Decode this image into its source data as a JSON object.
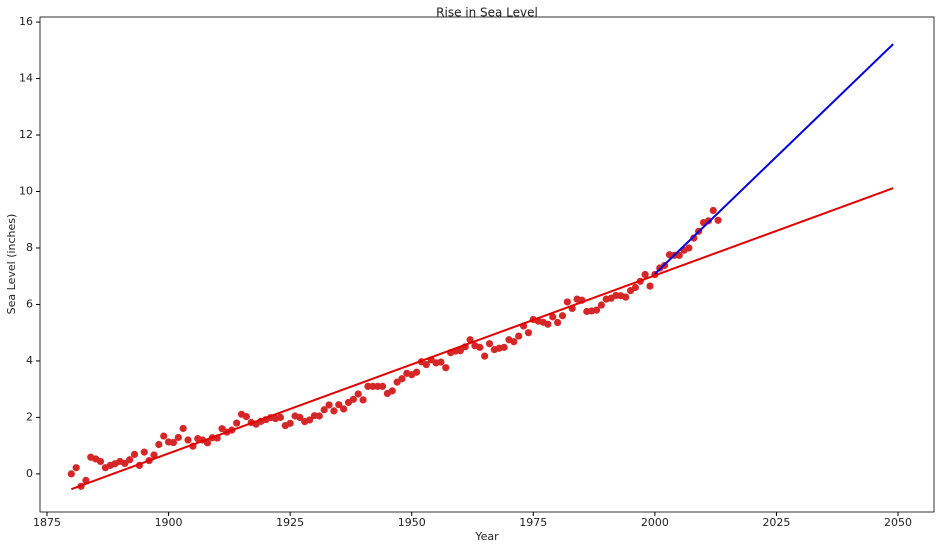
{
  "chart_data": {
    "type": "scatter",
    "title": "Rise in Sea Level",
    "x_label": "Year",
    "y_label": "Sea Level (inches)",
    "xlim": [
      1873.56,
      2057.4
    ],
    "ylim": [
      -1.35,
      16.18
    ],
    "xticks": [
      1875,
      1900,
      1925,
      1950,
      1975,
      2000,
      2025,
      2050
    ],
    "yticks": [
      0,
      2,
      4,
      6,
      8,
      10,
      12,
      14,
      16
    ],
    "series": [
      {
        "type": "scatter",
        "color": "#d62728",
        "x": [
          1880,
          1881,
          1882,
          1883,
          1884,
          1885,
          1886,
          1887,
          1888,
          1889,
          1890,
          1891,
          1892,
          1893,
          1894,
          1895,
          1896,
          1897,
          1898,
          1899,
          1900,
          1901,
          1902,
          1903,
          1904,
          1905,
          1906,
          1907,
          1908,
          1909,
          1910,
          1911,
          1912,
          1913,
          1914,
          1915,
          1916,
          1917,
          1918,
          1919,
          1920,
          1921,
          1922,
          1923,
          1924,
          1925,
          1926,
          1927,
          1928,
          1929,
          1930,
          1931,
          1932,
          1933,
          1934,
          1935,
          1936,
          1937,
          1938,
          1939,
          1940,
          1941,
          1942,
          1943,
          1944,
          1945,
          1946,
          1947,
          1948,
          1949,
          1950,
          1951,
          1952,
          1953,
          1954,
          1955,
          1956,
          1957,
          1958,
          1959,
          1960,
          1961,
          1962,
          1963,
          1964,
          1965,
          1966,
          1967,
          1968,
          1969,
          1970,
          1971,
          1972,
          1973,
          1974,
          1975,
          1976,
          1977,
          1978,
          1979,
          1980,
          1981,
          1982,
          1983,
          1984,
          1985,
          1986,
          1987,
          1988,
          1989,
          1990,
          1991,
          1992,
          1993,
          1994,
          1995,
          1996,
          1997,
          1998,
          1999,
          2000,
          2001,
          2002,
          2003,
          2004,
          2005,
          2006,
          2007,
          2008,
          2009,
          2010,
          2011,
          2012,
          2013
        ],
        "values": [
          0.0,
          0.22,
          -0.44,
          -0.23,
          0.59,
          0.53,
          0.44,
          0.22,
          0.3,
          0.36,
          0.44,
          0.37,
          0.5,
          0.69,
          0.3,
          0.77,
          0.47,
          0.67,
          1.04,
          1.34,
          1.13,
          1.11,
          1.29,
          1.61,
          1.2,
          0.98,
          1.25,
          1.2,
          1.1,
          1.28,
          1.27,
          1.6,
          1.48,
          1.55,
          1.8,
          2.11,
          2.03,
          1.82,
          1.76,
          1.86,
          1.92,
          1.99,
          1.96,
          2.0,
          1.71,
          1.79,
          2.05,
          2.0,
          1.85,
          1.91,
          2.06,
          2.05,
          2.27,
          2.44,
          2.23,
          2.45,
          2.3,
          2.53,
          2.64,
          2.83,
          2.62,
          3.1,
          3.1,
          3.1,
          3.1,
          2.85,
          2.94,
          3.25,
          3.37,
          3.56,
          3.51,
          3.6,
          3.97,
          3.87,
          4.04,
          3.93,
          3.96,
          3.76,
          4.29,
          4.35,
          4.36,
          4.5,
          4.75,
          4.54,
          4.48,
          4.17,
          4.61,
          4.4,
          4.45,
          4.48,
          4.75,
          4.68,
          4.88,
          5.24,
          5.0,
          5.47,
          5.41,
          5.37,
          5.3,
          5.56,
          5.36,
          5.6,
          6.09,
          5.86,
          6.19,
          6.15,
          5.75,
          5.77,
          5.8,
          5.98,
          6.19,
          6.22,
          6.32,
          6.31,
          6.26,
          6.49,
          6.6,
          6.82,
          7.06,
          6.65,
          7.06,
          7.29,
          7.38,
          7.76,
          7.74,
          7.74,
          7.92,
          8.0,
          8.35,
          8.59,
          8.9,
          8.96,
          9.33,
          8.98
        ]
      },
      {
        "type": "line",
        "color": "#e00000",
        "x": [
          1880,
          2049
        ],
        "values": [
          -0.54,
          10.12
        ]
      },
      {
        "type": "line",
        "color": "#0000e0",
        "x": [
          2000,
          2049
        ],
        "values": [
          7.08,
          15.22
        ]
      }
    ]
  }
}
